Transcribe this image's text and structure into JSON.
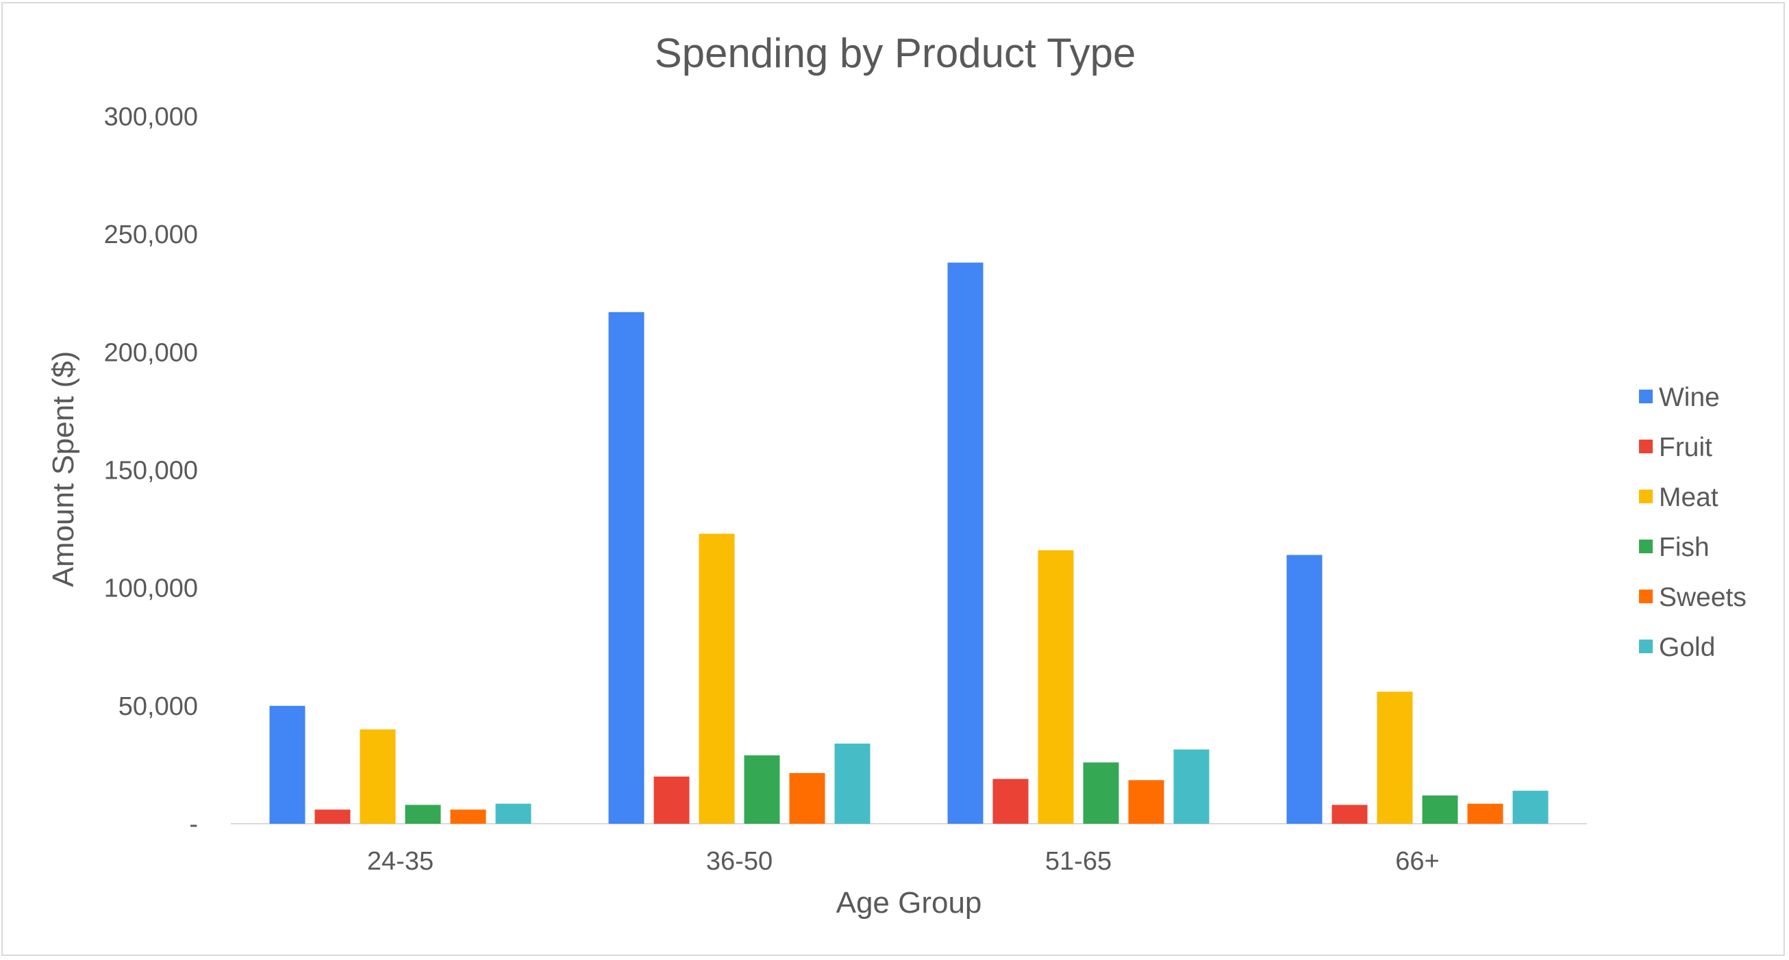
{
  "chart_data": {
    "type": "bar",
    "title": "Spending by Product Type",
    "xlabel": "Age Group",
    "ylabel": "Amount Spent ($)",
    "categories": [
      "24-35",
      "36-50",
      "51-65",
      "66+"
    ],
    "ylim": [
      0,
      300000
    ],
    "yticks": [
      0,
      50000,
      100000,
      150000,
      200000,
      250000,
      300000
    ],
    "ytick_labels": [
      "-",
      "50,000",
      "100,000",
      "150,000",
      "200,000",
      "250,000",
      "300,000"
    ],
    "grid": false,
    "legend_position": "right",
    "series": [
      {
        "name": "Wine",
        "color": "#4285f4",
        "values": [
          50000,
          217000,
          238000,
          114000
        ]
      },
      {
        "name": "Fruit",
        "color": "#ea4335",
        "values": [
          6000,
          20000,
          19000,
          8000
        ]
      },
      {
        "name": "Meat",
        "color": "#fbbc04",
        "values": [
          40000,
          123000,
          116000,
          56000
        ]
      },
      {
        "name": "Fish",
        "color": "#34a853",
        "values": [
          8000,
          29000,
          26000,
          12000
        ]
      },
      {
        "name": "Sweets",
        "color": "#ff6d01",
        "values": [
          6000,
          21500,
          18500,
          8500
        ]
      },
      {
        "name": "Gold",
        "color": "#46bdc6",
        "values": [
          8500,
          34000,
          31500,
          14000
        ]
      }
    ]
  }
}
